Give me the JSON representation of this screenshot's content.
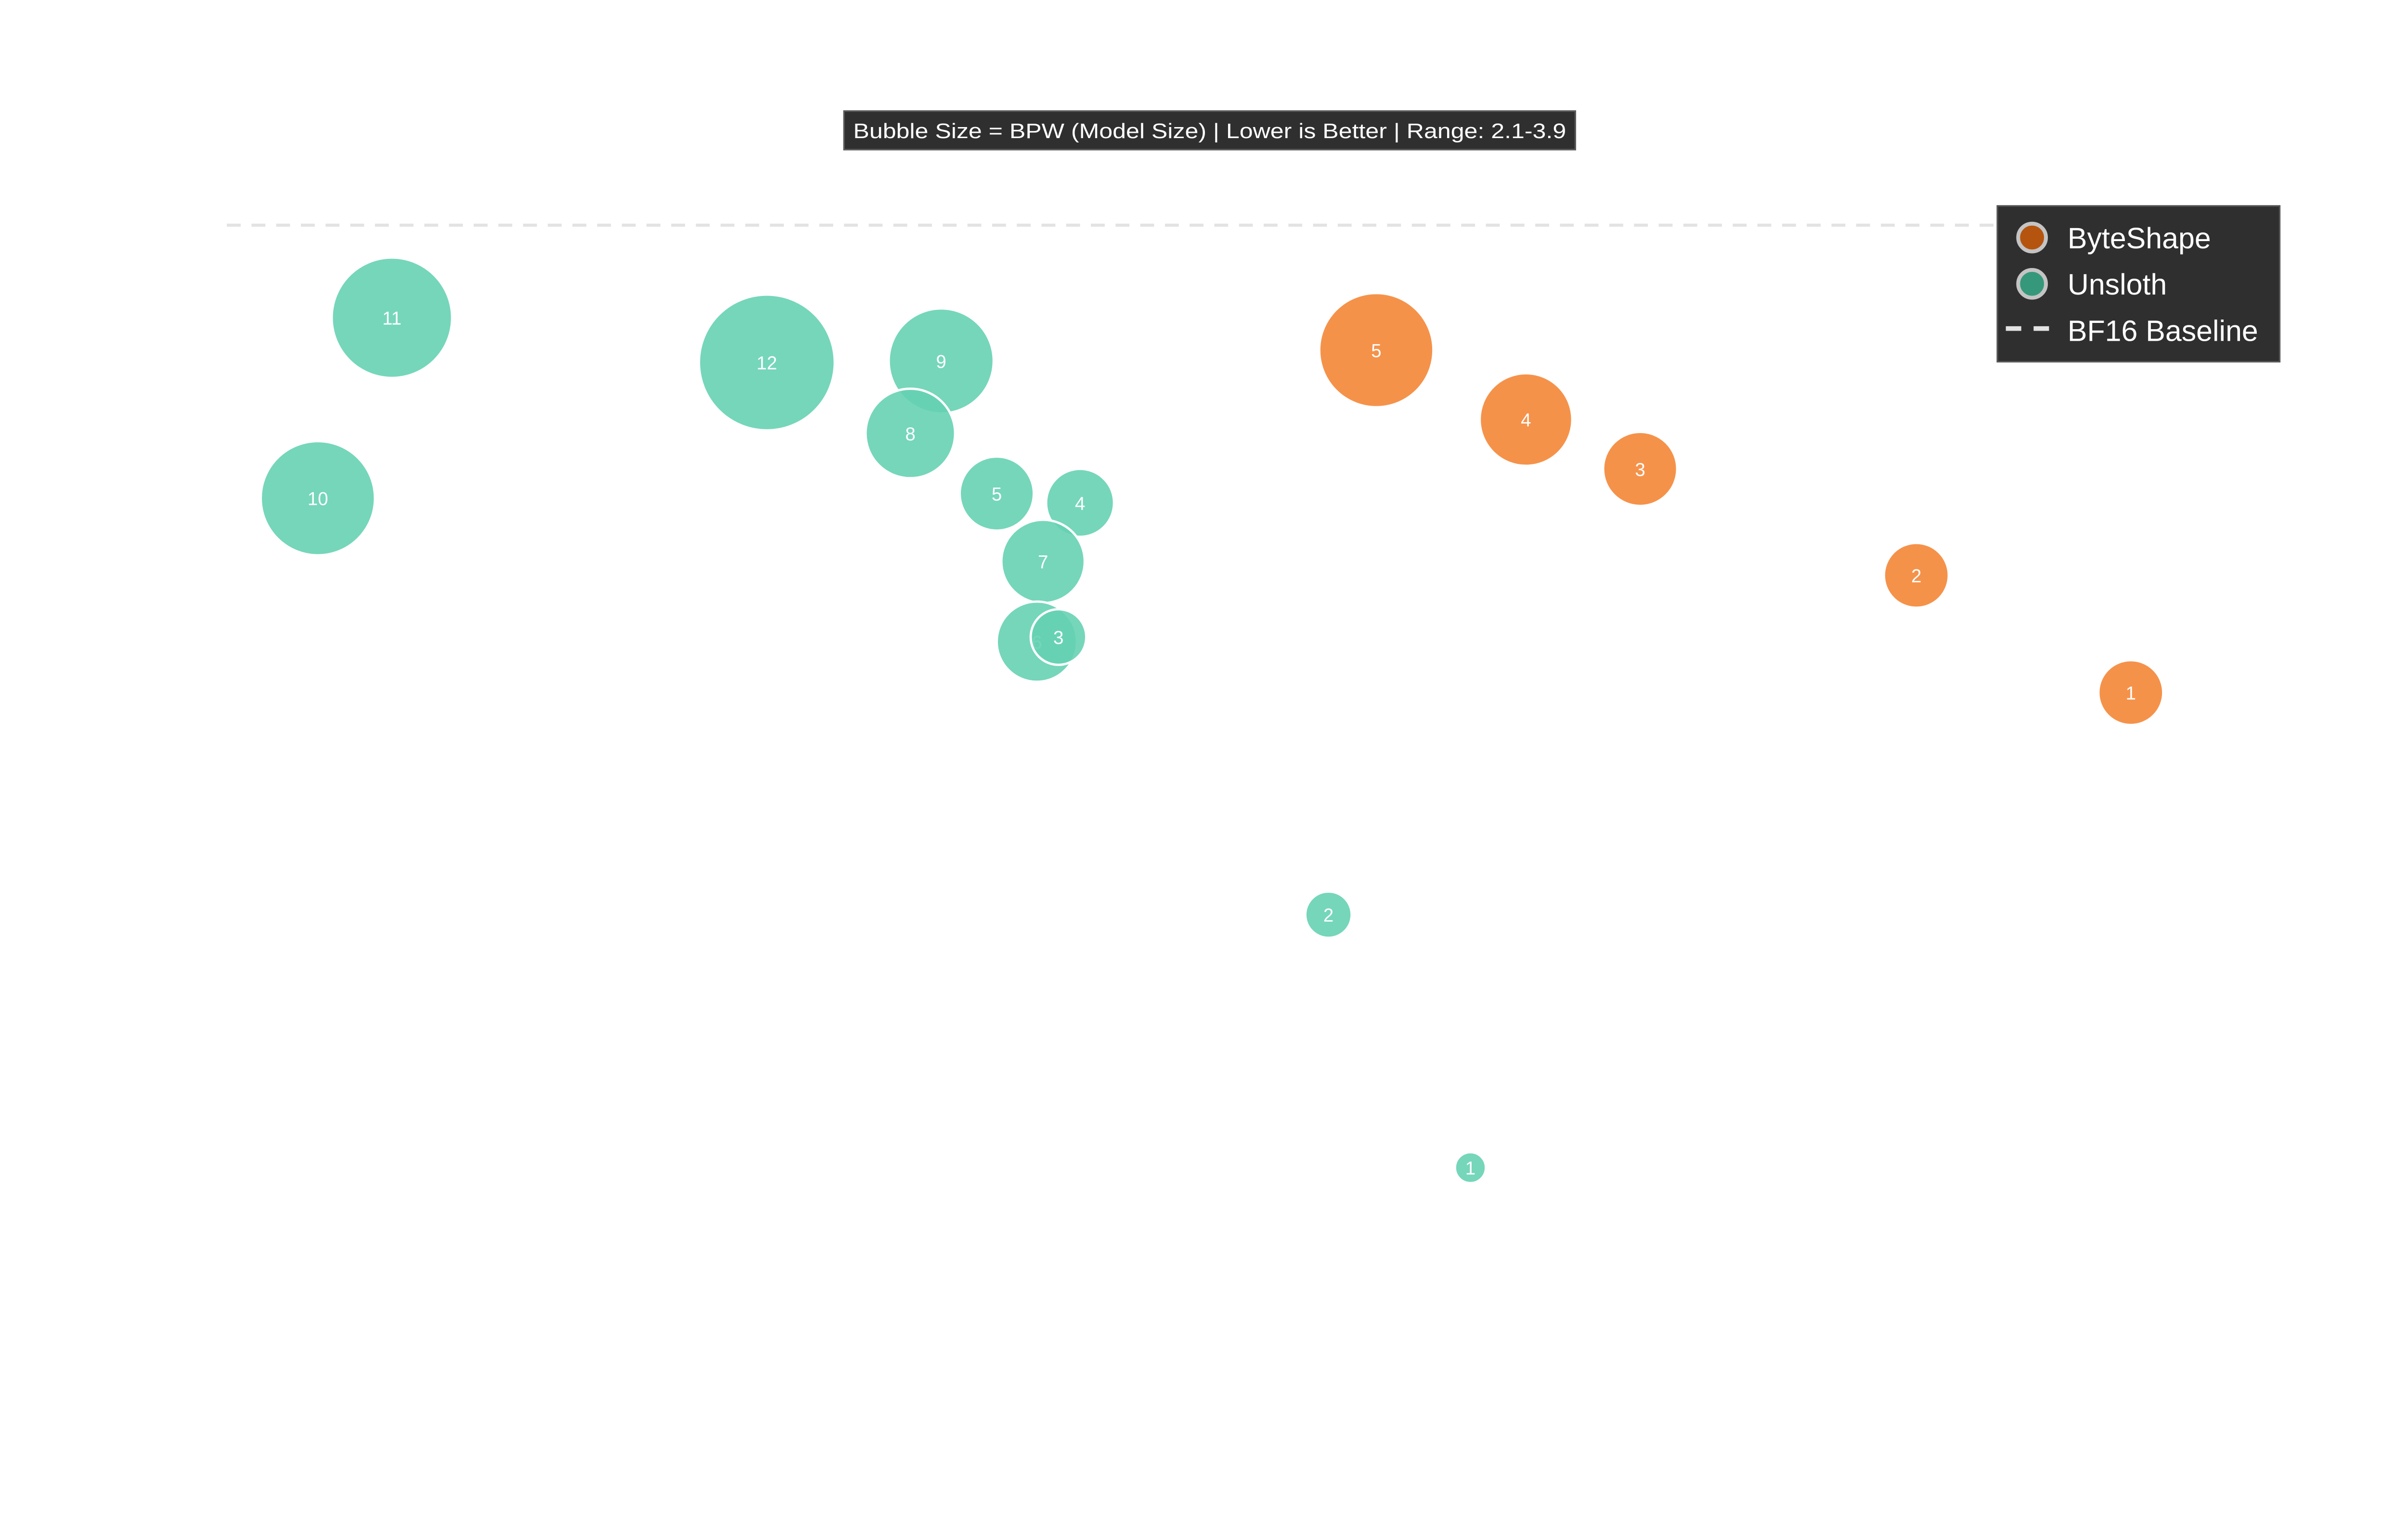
{
  "chart_data": {
    "type": "scatter",
    "annotation": "Bubble Size = BPW (Model Size) | Lower is Better | Range: 2.1-3.9",
    "grid": false,
    "legend_placement": "top-right",
    "legend": [
      {
        "name": "ByteShape",
        "marker": "circle",
        "color": "#b5540f"
      },
      {
        "name": "Unsloth",
        "marker": "circle",
        "color": "#36987a"
      },
      {
        "name": "BF16 Baseline",
        "marker": "dashed-line",
        "color": "#e0e0e0"
      }
    ],
    "colors": {
      "ByteShape": "#f5924a",
      "Unsloth": "#66d1b3",
      "baseline": "#e0e0e0"
    },
    "series": [
      {
        "name": "Unsloth",
        "labels": [
          "11",
          "12",
          "9",
          "8",
          "10",
          "5",
          "4",
          "7",
          "6",
          "3",
          "2",
          "1"
        ]
      },
      {
        "name": "ByteShape",
        "labels": [
          "5",
          "4",
          "3",
          "2",
          "1"
        ]
      }
    ]
  }
}
